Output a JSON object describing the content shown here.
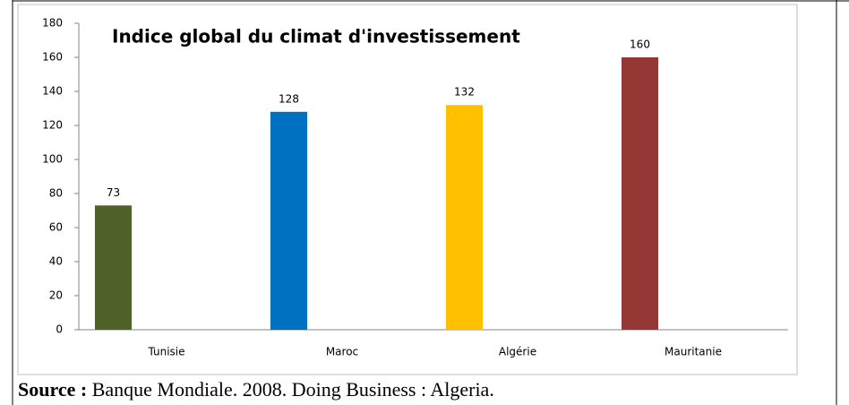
{
  "chart_data": {
    "type": "bar",
    "title": "Indice global du climat d'investissement",
    "categories": [
      "Tunisie",
      "Maroc",
      "Algérie",
      "Mauritanie"
    ],
    "values": [
      73,
      128,
      132,
      160
    ],
    "colors": [
      "#4f6228",
      "#0070c0",
      "#ffc000",
      "#953735"
    ],
    "ylim": [
      0,
      180
    ],
    "yticks": [
      0,
      20,
      40,
      60,
      80,
      100,
      120,
      140,
      160,
      180
    ],
    "grid": false
  },
  "source": {
    "label": "Source :",
    "text": "Banque Mondiale. 2008. Doing Business : Algeria."
  }
}
